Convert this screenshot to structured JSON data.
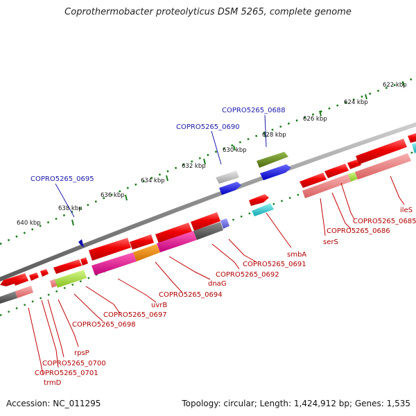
{
  "title": "Coprothermobacter proteolyticus DSM 5265, complete genome",
  "footer": {
    "accession": "Accession: NC_011295",
    "summary": "Topology: circular; Length: 1,424,912 bp; Genes: 1,535"
  },
  "scale_labels": [
    "622 kbp",
    "624 kbp",
    "626 kbp",
    "628 kbp",
    "630 kbp",
    "632 kbp",
    "634 kbp",
    "636 kbp",
    "638 kbp",
    "640 kbp"
  ],
  "forward_labels": [
    "COPRO5265_0688",
    "COPRO5265_0690",
    "COPRO5265_0695"
  ],
  "reverse_labels": [
    "ileS",
    "COPRO5265_0685",
    "COPRO5265_0686",
    "serS",
    "smbA",
    "COPRO5265_0691",
    "COPRO5265_0692",
    "dnaG",
    "COPRO5265_0694",
    "uvrB",
    "COPRO5265_0697",
    "COPRO5265_0698",
    "rpsP",
    "COPRO5265_0700",
    "COPRO5265_0701",
    "trmD"
  ],
  "colors": {
    "backbone": "#8c8c8c",
    "gene_red": "#ee0000",
    "gene_pink": "#e87878",
    "gene_magenta": "#e0148c",
    "gene_olive": "#6b8a1e",
    "gene_blue": "#1010e0",
    "gene_cyan": "#20c0c8",
    "gene_gray": "#bdbdbd",
    "gene_darkgray": "#606060",
    "gene_orange": "#f08c00",
    "gene_lime": "#a8e040",
    "scale_green": "#1a7a1a",
    "label_blue": "#1a1aa8",
    "label_red": "#b00000"
  }
}
